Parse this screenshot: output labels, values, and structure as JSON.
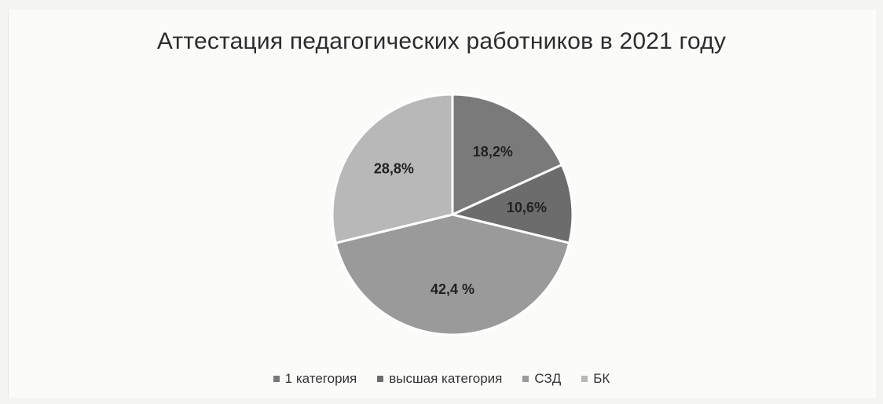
{
  "chart_data": {
    "type": "pie",
    "title": "Аттестация педагогических работников в 2021 году",
    "categories": [
      "1 категория",
      "высшая категория",
      "СЗД",
      "БК"
    ],
    "slices": [
      {
        "name": "1 категория",
        "value": 18.2,
        "label": "18,2%",
        "color": "#7a7a7a"
      },
      {
        "name": "высшая категория",
        "value": 10.6,
        "label": "10,6%",
        "color": "#6c6c6c"
      },
      {
        "name": "СЗД",
        "value": 42.4,
        "label": "42,4 %",
        "color": "#9a9a9a"
      },
      {
        "name": "БК",
        "value": 28.8,
        "label": "28,8%",
        "color": "#b8b8b8"
      }
    ],
    "legend_position": "bottom"
  }
}
